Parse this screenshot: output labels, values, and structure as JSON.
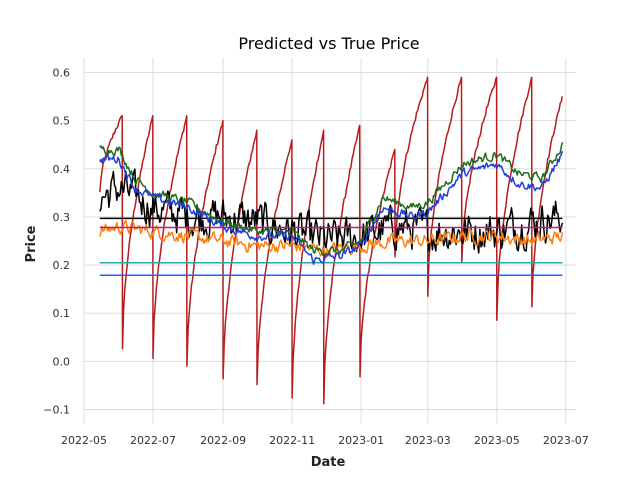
{
  "chart_data": {
    "type": "line",
    "title": "Predicted vs True Price",
    "xlabel": "Date",
    "ylabel": "Price",
    "xlim": [
      "2022-05-01",
      "2023-07-10"
    ],
    "ylim": [
      -0.13,
      0.63
    ],
    "grid": true,
    "x_ticks": [
      "2022-05",
      "2022-07",
      "2022-09",
      "2022-11",
      "2023-01",
      "2023-03",
      "2023-05",
      "2023-07"
    ],
    "y_ticks": [
      -0.1,
      0.0,
      0.1,
      0.2,
      0.3,
      0.4,
      0.5,
      0.6
    ],
    "x_start": "2022-05-15",
    "x_end": "2023-06-28",
    "series": [
      {
        "color": "#b71c1c",
        "kind": "sawtooth",
        "resets": [
          [
            "2022-05-15",
            0.35
          ],
          [
            "2022-06-04",
            0.03
          ],
          [
            "2022-07-01",
            0.01
          ],
          [
            "2022-07-31",
            -0.01
          ],
          [
            "2022-09-01",
            -0.04
          ],
          [
            "2022-10-01",
            -0.05
          ],
          [
            "2022-11-01",
            -0.08
          ],
          [
            "2022-11-29",
            -0.09
          ],
          [
            "2022-12-31",
            -0.03
          ],
          [
            "2023-01-31",
            0.22
          ],
          [
            "2023-03-01",
            0.14
          ],
          [
            "2023-03-31",
            0.2
          ],
          [
            "2023-05-01",
            0.09
          ],
          [
            "2023-06-01",
            0.11
          ],
          [
            "2023-06-28",
            0.55
          ]
        ],
        "peaks": [
          0.51,
          0.51,
          0.51,
          0.5,
          0.48,
          0.46,
          0.48,
          0.49,
          0.44,
          0.59,
          0.59,
          0.59,
          0.59,
          0.55
        ]
      },
      {
        "color": "#000000",
        "kind": "noisy",
        "anchors": [
          [
            "2022-05-15",
            0.34
          ],
          [
            "2022-06-01",
            0.36
          ],
          [
            "2022-07-01",
            0.32
          ],
          [
            "2022-08-01",
            0.3
          ],
          [
            "2022-09-01",
            0.3
          ],
          [
            "2022-10-01",
            0.29
          ],
          [
            "2022-11-01",
            0.27
          ],
          [
            "2022-12-01",
            0.25
          ],
          [
            "2023-01-01",
            0.26
          ],
          [
            "2023-02-01",
            0.28
          ],
          [
            "2023-03-01",
            0.27
          ],
          [
            "2023-04-01",
            0.27
          ],
          [
            "2023-05-01",
            0.27
          ],
          [
            "2023-06-01",
            0.29
          ],
          [
            "2023-06-28",
            0.3
          ]
        ],
        "noise": 0.035
      },
      {
        "color": "#1f6b1f",
        "kind": "noisy",
        "anchors": [
          [
            "2022-05-15",
            0.44
          ],
          [
            "2022-06-01",
            0.44
          ],
          [
            "2022-06-15",
            0.38
          ],
          [
            "2022-07-01",
            0.35
          ],
          [
            "2022-08-01",
            0.33
          ],
          [
            "2022-09-01",
            0.29
          ],
          [
            "2022-10-01",
            0.27
          ],
          [
            "2022-11-01",
            0.27
          ],
          [
            "2022-11-20",
            0.23
          ],
          [
            "2022-12-15",
            0.23
          ],
          [
            "2023-01-01",
            0.25
          ],
          [
            "2023-01-20",
            0.34
          ],
          [
            "2023-02-15",
            0.32
          ],
          [
            "2023-03-01",
            0.33
          ],
          [
            "2023-04-01",
            0.41
          ],
          [
            "2023-05-01",
            0.43
          ],
          [
            "2023-05-20",
            0.39
          ],
          [
            "2023-06-10",
            0.38
          ],
          [
            "2023-06-28",
            0.45
          ]
        ],
        "noise": 0.008
      },
      {
        "color": "#1f3fdc",
        "kind": "noisy",
        "anchors": [
          [
            "2022-05-15",
            0.42
          ],
          [
            "2022-06-01",
            0.42
          ],
          [
            "2022-06-15",
            0.36
          ],
          [
            "2022-07-01",
            0.34
          ],
          [
            "2022-08-01",
            0.32
          ],
          [
            "2022-09-01",
            0.28
          ],
          [
            "2022-10-01",
            0.26
          ],
          [
            "2022-11-01",
            0.26
          ],
          [
            "2022-11-20",
            0.21
          ],
          [
            "2022-12-15",
            0.22
          ],
          [
            "2023-01-01",
            0.24
          ],
          [
            "2023-01-20",
            0.32
          ],
          [
            "2023-02-15",
            0.3
          ],
          [
            "2023-03-01",
            0.31
          ],
          [
            "2023-04-01",
            0.39
          ],
          [
            "2023-05-01",
            0.41
          ],
          [
            "2023-05-20",
            0.37
          ],
          [
            "2023-06-10",
            0.36
          ],
          [
            "2023-06-28",
            0.43
          ]
        ],
        "noise": 0.008
      },
      {
        "color": "#ff7f0e",
        "kind": "noisy",
        "anchors": [
          [
            "2022-05-15",
            0.27
          ],
          [
            "2022-06-01",
            0.28
          ],
          [
            "2022-07-01",
            0.27
          ],
          [
            "2022-08-01",
            0.26
          ],
          [
            "2022-09-01",
            0.25
          ],
          [
            "2022-10-01",
            0.24
          ],
          [
            "2022-11-01",
            0.24
          ],
          [
            "2022-12-01",
            0.23
          ],
          [
            "2023-01-01",
            0.24
          ],
          [
            "2023-02-01",
            0.25
          ],
          [
            "2023-03-01",
            0.25
          ],
          [
            "2023-04-01",
            0.26
          ],
          [
            "2023-05-01",
            0.26
          ],
          [
            "2023-06-01",
            0.25
          ],
          [
            "2023-06-28",
            0.26
          ]
        ],
        "noise": 0.012
      },
      {
        "color": "#c71585",
        "kind": "flat",
        "value": 0.278
      },
      {
        "color": "#000000",
        "kind": "flat",
        "value": 0.297
      },
      {
        "color": "#2ca6a4",
        "kind": "flat",
        "value": 0.205
      },
      {
        "color": "#1565ff",
        "kind": "flat",
        "value": 0.179
      }
    ]
  }
}
